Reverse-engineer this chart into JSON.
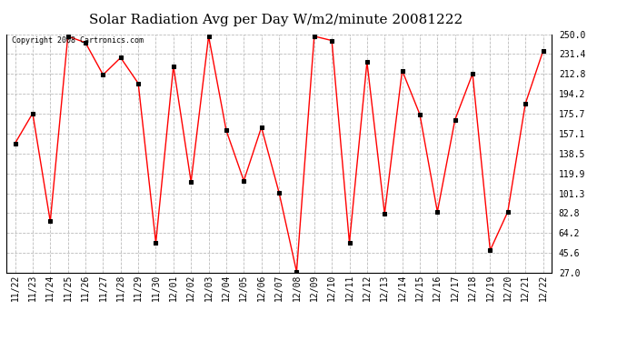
{
  "title": "Solar Radiation Avg per Day W/m2/minute 20081222",
  "copyright": "Copyright 2008 Cartronics.com",
  "labels": [
    "11/22",
    "11/23",
    "11/24",
    "11/25",
    "11/26",
    "11/27",
    "11/28",
    "11/29",
    "11/30",
    "12/01",
    "12/02",
    "12/03",
    "12/04",
    "12/05",
    "12/06",
    "12/07",
    "12/08",
    "12/09",
    "12/10",
    "12/11",
    "12/12",
    "12/13",
    "12/14",
    "12/15",
    "12/16",
    "12/17",
    "12/18",
    "12/19",
    "12/20",
    "12/21",
    "12/22"
  ],
  "values": [
    148.0,
    176.0,
    75.0,
    248.0,
    242.0,
    212.0,
    228.0,
    204.0,
    55.0,
    220.0,
    112.0,
    248.0,
    160.0,
    113.0,
    163.0,
    102.0,
    28.0,
    248.0,
    244.0,
    55.0,
    224.0,
    82.0,
    216.0,
    175.0,
    84.0,
    170.0,
    213.0,
    48.0,
    84.0,
    185.0,
    234.0
  ],
  "ylim": [
    27.0,
    250.0
  ],
  "yticks": [
    27.0,
    45.6,
    64.2,
    82.8,
    101.3,
    119.9,
    138.5,
    157.1,
    175.7,
    194.2,
    212.8,
    231.4,
    250.0
  ],
  "line_color": "red",
  "marker": "s",
  "marker_color": "black",
  "marker_size": 2.5,
  "grid_color": "#bbbbbb",
  "bg_color": "white",
  "title_fontsize": 11,
  "copyright_fontsize": 6,
  "tick_fontsize": 7
}
